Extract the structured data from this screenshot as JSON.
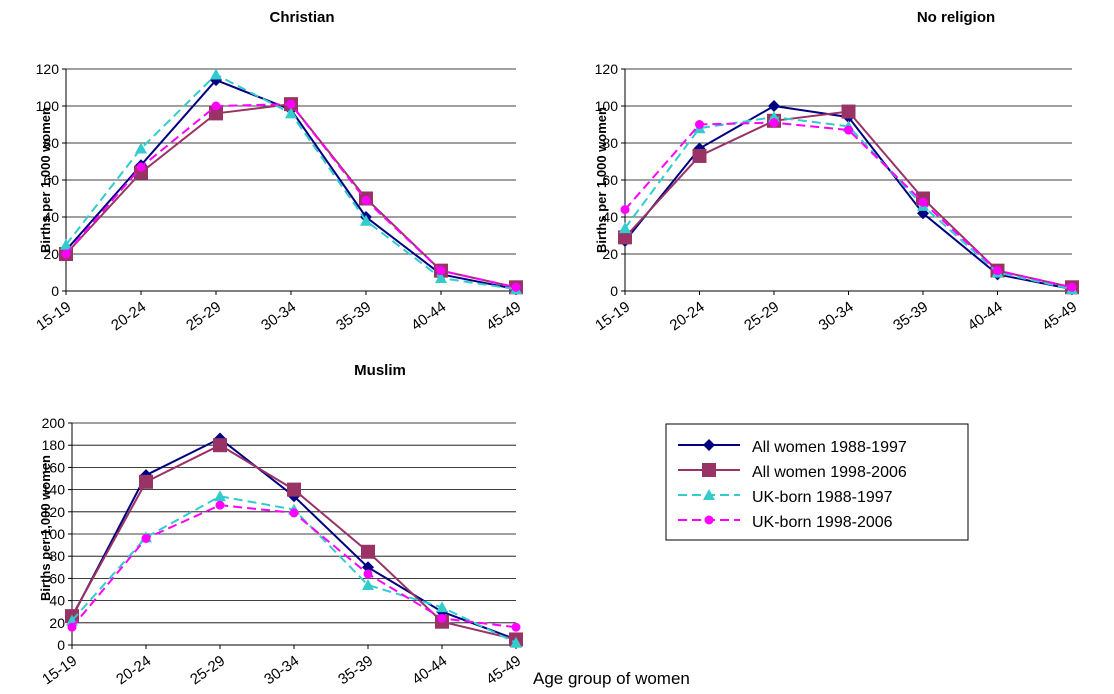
{
  "chart_data": [
    {
      "type": "line",
      "title": "Christian",
      "ylabel": "Births per 1,000 women",
      "ylim": [
        0,
        120
      ],
      "yticks": [
        0,
        20,
        40,
        60,
        80,
        100,
        120
      ],
      "categories": [
        "15-19",
        "20-24",
        "25-29",
        "30-34",
        "35-39",
        "40-44",
        "45-49"
      ],
      "series": [
        {
          "name": "All women 1988-1997",
          "values": [
            22,
            68,
            114,
            98,
            40,
            9,
            1
          ]
        },
        {
          "name": "All women 1998-2006",
          "values": [
            20,
            64,
            96,
            101,
            50,
            11,
            2
          ]
        },
        {
          "name": "UK-born 1988-1997",
          "values": [
            25,
            77,
            117,
            96,
            38,
            7,
            1
          ]
        },
        {
          "name": "UK-born 1998-2006",
          "values": [
            20,
            67,
            100,
            101,
            49,
            11,
            2
          ]
        }
      ]
    },
    {
      "type": "line",
      "title": "No religion",
      "ylabel": "Births per 1,000 women",
      "ylim": [
        0,
        120
      ],
      "yticks": [
        0,
        20,
        40,
        60,
        80,
        100,
        120
      ],
      "categories": [
        "15-19",
        "20-24",
        "25-29",
        "30-34",
        "35-39",
        "40-44",
        "45-49"
      ],
      "series": [
        {
          "name": "All women 1988-1997",
          "values": [
            27,
            77,
            100,
            94,
            42,
            9,
            1
          ]
        },
        {
          "name": "All women 1998-2006",
          "values": [
            29,
            73,
            92,
            97,
            50,
            11,
            2
          ]
        },
        {
          "name": "UK-born 1988-1997",
          "values": [
            34,
            88,
            94,
            89,
            46,
            10,
            1
          ]
        },
        {
          "name": "UK-born 1998-2006",
          "values": [
            44,
            90,
            91,
            87,
            48,
            11,
            2
          ]
        }
      ]
    },
    {
      "type": "line",
      "title": "Muslim",
      "ylabel": "Births per 1,000 women",
      "xlabel": "Age group of women",
      "ylim": [
        0,
        200
      ],
      "yticks": [
        0,
        20,
        40,
        60,
        80,
        100,
        120,
        140,
        160,
        180,
        200
      ],
      "categories": [
        "15-19",
        "20-24",
        "25-29",
        "30-34",
        "35-39",
        "40-44",
        "45-49"
      ],
      "series": [
        {
          "name": "All women 1988-1997",
          "values": [
            25,
            153,
            186,
            134,
            70,
            30,
            5
          ]
        },
        {
          "name": "All women 1998-2006",
          "values": [
            26,
            147,
            180,
            140,
            84,
            21,
            5
          ]
        },
        {
          "name": "UK-born 1988-1997",
          "values": [
            22,
            97,
            134,
            122,
            54,
            34,
            2
          ]
        },
        {
          "name": "UK-born 1998-2006",
          "values": [
            16,
            96,
            126,
            119,
            64,
            24,
            16
          ]
        }
      ]
    }
  ],
  "legend": [
    {
      "label": "All women 1988-1997",
      "color": "#000080",
      "marker": "diamond",
      "dash": "solid"
    },
    {
      "label": "All women 1998-2006",
      "color": "#993366",
      "marker": "square",
      "dash": "solid"
    },
    {
      "label": "UK-born 1988-1997",
      "color": "#33CCCC",
      "marker": "triangle",
      "dash": "dashed"
    },
    {
      "label": "UK-born 1998-2006",
      "color": "#FF00FF",
      "marker": "circle",
      "dash": "dashed"
    }
  ]
}
